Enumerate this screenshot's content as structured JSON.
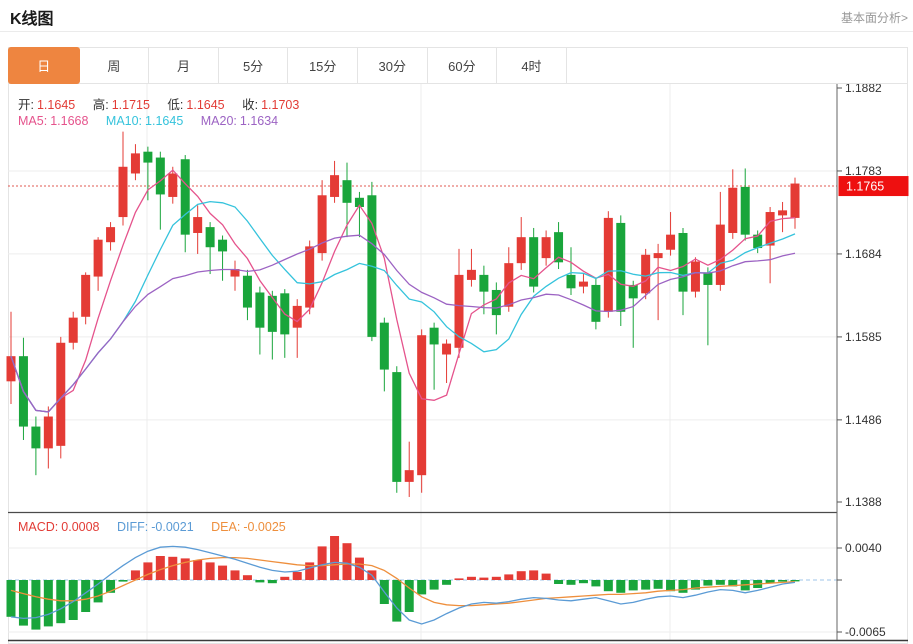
{
  "page": {
    "title": "K线图",
    "link": "基本面分析>"
  },
  "tabs": {
    "items": [
      "日",
      "周",
      "月",
      "5分",
      "15分",
      "30分",
      "60分",
      "4时"
    ],
    "selected_index": 0
  },
  "kline_legend": {
    "open_label": "开:",
    "open": "1.1645",
    "high_label": "高:",
    "high": "1.1715",
    "low_label": "低:",
    "low": "1.1645",
    "close_label": "收:",
    "close": "1.1703",
    "ma5_label": "MA5:",
    "ma5": "1.1668",
    "ma10_label": "MA10:",
    "ma10": "1.1645",
    "ma20_label": "MA20:",
    "ma20": "1.1634"
  },
  "macd_legend": {
    "macd_label": "MACD:",
    "macd": "0.0008",
    "diff_label": "DIFF:",
    "diff": "-0.0021",
    "dea_label": "DEA:",
    "dea": "-0.0025"
  },
  "price_axis": {
    "tick_labels": [
      "1.1882",
      "1.1783",
      "1.1684",
      "1.1585",
      "1.1486",
      "1.1388"
    ],
    "current_price_label": "1.1765"
  },
  "macd_axis": {
    "tick_labels": [
      "0.0040",
      "-0.0065"
    ]
  },
  "colors": {
    "accent_orange": "#ee8540",
    "up_red": "#e43b35",
    "down_green": "#19a53b",
    "ma5_pink": "#e5538c",
    "ma10_cyan": "#35c3dc",
    "ma20_purple": "#9c63c3",
    "diff_blue": "#5b9bd5",
    "dea_orange": "#ee8f3d",
    "price_badge_red": "#ee1010",
    "dotted_line_red": "#e25a52",
    "grid_gray": "#ededed",
    "axis_dark": "#666666"
  },
  "chart_data": [
    {
      "type": "candlestick",
      "title": "K线图",
      "interval": "日",
      "convention": "red=up green=down",
      "y_ticks": [
        1.1882,
        1.1783,
        1.1684,
        1.1585,
        1.1486,
        1.1388
      ],
      "ylim": [
        1.1388,
        1.1882
      ],
      "current_price": 1.1765,
      "ma_periods": [
        5,
        10,
        20
      ],
      "candles_ohlc": [
        [
          1.1532,
          1.1615,
          1.1505,
          1.1562
        ],
        [
          1.1562,
          1.1584,
          1.1462,
          1.1478
        ],
        [
          1.1478,
          1.149,
          1.142,
          1.1452
        ],
        [
          1.1452,
          1.1502,
          1.1428,
          1.149
        ],
        [
          1.1455,
          1.1585,
          1.144,
          1.1578
        ],
        [
          1.1578,
          1.1615,
          1.157,
          1.1608
        ],
        [
          1.1609,
          1.1662,
          1.16,
          1.1659
        ],
        [
          1.1657,
          1.1704,
          1.164,
          1.1701
        ],
        [
          1.1698,
          1.1722,
          1.1688,
          1.1716
        ],
        [
          1.1728,
          1.183,
          1.1718,
          1.1788
        ],
        [
          1.178,
          1.1815,
          1.1772,
          1.1804
        ],
        [
          1.1806,
          1.1812,
          1.1748,
          1.1793
        ],
        [
          1.1799,
          1.1806,
          1.1713,
          1.1755
        ],
        [
          1.1752,
          1.1788,
          1.1744,
          1.178
        ],
        [
          1.1797,
          1.1802,
          1.1686,
          1.1707
        ],
        [
          1.1709,
          1.1742,
          1.1684,
          1.1728
        ],
        [
          1.1716,
          1.1722,
          1.166,
          1.1692
        ],
        [
          1.1701,
          1.1706,
          1.1652,
          1.1687
        ],
        [
          1.1657,
          1.1676,
          1.164,
          1.1666
        ],
        [
          1.1658,
          1.1665,
          1.1605,
          1.162
        ],
        [
          1.1638,
          1.1645,
          1.1564,
          1.1596
        ],
        [
          1.1634,
          1.164,
          1.1558,
          1.1591
        ],
        [
          1.1637,
          1.1642,
          1.156,
          1.1588
        ],
        [
          1.1596,
          1.163,
          1.156,
          1.1622
        ],
        [
          1.162,
          1.17,
          1.1612,
          1.1693
        ],
        [
          1.1685,
          1.1772,
          1.1676,
          1.1754
        ],
        [
          1.1752,
          1.1795,
          1.1745,
          1.1778
        ],
        [
          1.1772,
          1.1793,
          1.1704,
          1.1745
        ],
        [
          1.1751,
          1.1758,
          1.1704,
          1.174
        ],
        [
          1.1754,
          1.177,
          1.158,
          1.1585
        ],
        [
          1.1602,
          1.1608,
          1.152,
          1.1546
        ],
        [
          1.1543,
          1.155,
          1.1399,
          1.1412
        ],
        [
          1.1412,
          1.146,
          1.1394,
          1.1426
        ],
        [
          1.142,
          1.1594,
          1.1399,
          1.1587
        ],
        [
          1.1596,
          1.1602,
          1.1522,
          1.1576
        ],
        [
          1.1564,
          1.1582,
          1.153,
          1.1577
        ],
        [
          1.1572,
          1.169,
          1.156,
          1.1659
        ],
        [
          1.1653,
          1.169,
          1.1645,
          1.1665
        ],
        [
          1.1659,
          1.167,
          1.1612,
          1.1639
        ],
        [
          1.1641,
          1.165,
          1.1588,
          1.1611
        ],
        [
          1.1621,
          1.1692,
          1.1615,
          1.1673
        ],
        [
          1.1673,
          1.1728,
          1.1665,
          1.1704
        ],
        [
          1.1704,
          1.1715,
          1.1638,
          1.1645
        ],
        [
          1.1679,
          1.1712,
          1.167,
          1.1704
        ],
        [
          1.171,
          1.1722,
          1.1666,
          1.1674
        ],
        [
          1.1659,
          1.1692,
          1.1635,
          1.1643
        ],
        [
          1.1645,
          1.166,
          1.1637,
          1.1651
        ],
        [
          1.1647,
          1.1655,
          1.1594,
          1.1603
        ],
        [
          1.1615,
          1.1735,
          1.1608,
          1.1727
        ],
        [
          1.1721,
          1.173,
          1.1598,
          1.1615
        ],
        [
          1.1647,
          1.1652,
          1.1572,
          1.1631
        ],
        [
          1.1637,
          1.169,
          1.163,
          1.1683
        ],
        [
          1.1679,
          1.1696,
          1.1605,
          1.1685
        ],
        [
          1.1689,
          1.1734,
          1.1682,
          1.1707
        ],
        [
          1.1709,
          1.1715,
          1.1611,
          1.1639
        ],
        [
          1.1639,
          1.168,
          1.1632,
          1.1675
        ],
        [
          1.1662,
          1.1668,
          1.1575,
          1.1647
        ],
        [
          1.1647,
          1.1758,
          1.164,
          1.1719
        ],
        [
          1.1709,
          1.1785,
          1.1702,
          1.1763
        ],
        [
          1.1764,
          1.1786,
          1.17,
          1.1707
        ],
        [
          1.1707,
          1.1712,
          1.1685,
          1.1691
        ],
        [
          1.1694,
          1.174,
          1.1649,
          1.1734
        ],
        [
          1.173,
          1.1746,
          1.171,
          1.1736
        ],
        [
          1.1727,
          1.1775,
          1.1714,
          1.1768
        ]
      ]
    },
    {
      "type": "macd",
      "y_ticks": [
        0.004,
        -0.0065
      ],
      "macd": 0.0008,
      "diff": -0.0021,
      "dea": -0.0025,
      "histogram": [
        -0.0046,
        -0.0057,
        -0.0062,
        -0.0058,
        -0.0054,
        -0.005,
        -0.004,
        -0.0028,
        -0.0016,
        -0.0002,
        0.0012,
        0.0022,
        0.003,
        0.0029,
        0.0027,
        0.0025,
        0.0022,
        0.0018,
        0.0012,
        0.0006,
        -0.0003,
        -0.0004,
        0.0004,
        0.001,
        0.0022,
        0.0042,
        0.0055,
        0.0046,
        0.0028,
        0.0012,
        -0.003,
        -0.0052,
        -0.004,
        -0.0018,
        -0.0012,
        -0.0006,
        0.0002,
        0.0004,
        0.0003,
        0.0004,
        0.0007,
        0.0011,
        0.0012,
        0.0008,
        -0.0005,
        -0.0006,
        -0.0004,
        -0.0008,
        -0.0014,
        -0.0016,
        -0.0013,
        -0.0012,
        -0.0011,
        -0.0014,
        -0.0016,
        -0.0012,
        -0.0007,
        -0.0006,
        -0.0008,
        -0.0013,
        -0.001,
        -0.0004,
        -0.0002,
        -0.0001
      ],
      "diff_line": [
        -0.0046,
        -0.0048,
        -0.0047,
        -0.0043,
        -0.0036,
        -0.0027,
        -0.0016,
        -0.0005,
        0.0007,
        0.0018,
        0.0028,
        0.0036,
        0.0041,
        0.0042,
        0.0041,
        0.0038,
        0.0034,
        0.003,
        0.0026,
        0.0021,
        0.0016,
        0.0012,
        0.001,
        0.0011,
        0.0015,
        0.0019,
        0.0022,
        0.0021,
        0.0016,
        0.0006,
        -0.0015,
        -0.0035,
        -0.005,
        -0.0055,
        -0.005,
        -0.0042,
        -0.0035,
        -0.003,
        -0.0028,
        -0.0029,
        -0.0027,
        -0.0024,
        -0.0022,
        -0.0023,
        -0.0025,
        -0.0026,
        -0.0024,
        -0.0022,
        -0.0026,
        -0.003,
        -0.0028,
        -0.0024,
        -0.0021,
        -0.002,
        -0.0022,
        -0.0019,
        -0.0015,
        -0.0012,
        -0.0013,
        -0.0016,
        -0.0013,
        -0.0009,
        -0.0005,
        -0.0003
      ],
      "dea_line": [
        -0.0013,
        -0.0017,
        -0.0021,
        -0.0024,
        -0.0026,
        -0.0026,
        -0.0024,
        -0.002,
        -0.0014,
        -0.0007,
        0.0,
        0.0007,
        0.0013,
        0.0018,
        0.0022,
        0.0025,
        0.0027,
        0.0028,
        0.0028,
        0.0027,
        0.0025,
        0.0023,
        0.0021,
        0.0019,
        0.0018,
        0.0018,
        0.0019,
        0.002,
        0.002,
        0.0018,
        0.0012,
        0.0002,
        -0.001,
        -0.0021,
        -0.0028,
        -0.0031,
        -0.0032,
        -0.0032,
        -0.0031,
        -0.003,
        -0.0029,
        -0.0027,
        -0.0025,
        -0.0023,
        -0.0022,
        -0.0021,
        -0.002,
        -0.0019,
        -0.0018,
        -0.0018,
        -0.0017,
        -0.0016,
        -0.0014,
        -0.0013,
        -0.0012,
        -0.001,
        -0.0009,
        -0.0008,
        -0.0007,
        -0.0006,
        -0.0005,
        -0.0004,
        -0.0003,
        -0.0002
      ]
    }
  ]
}
